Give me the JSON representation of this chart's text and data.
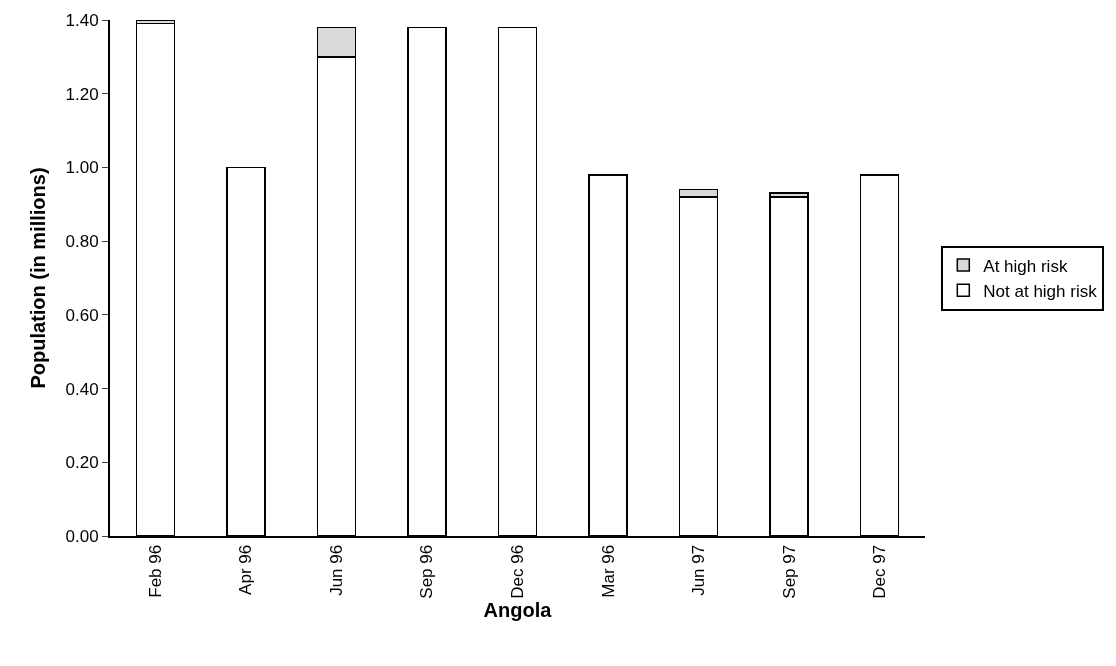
{
  "chart_data": {
    "type": "bar",
    "stacked": true,
    "xlabel": "Angola",
    "ylabel": "Population (in millions)",
    "categories": [
      "Feb 96",
      "Apr 96",
      "Jun 96",
      "Sep 96",
      "Dec 96",
      "Mar 96",
      "Jun 97",
      "Sep 97",
      "Dec 97"
    ],
    "series": [
      {
        "name": "Not at high risk",
        "color": "#ffffff",
        "values": [
          1.39,
          1.0,
          1.3,
          1.38,
          1.38,
          0.98,
          0.92,
          0.92,
          0.98
        ]
      },
      {
        "name": "At high risk",
        "color": "#d9d9d9",
        "values": [
          0.01,
          null,
          0.08,
          null,
          null,
          null,
          0.02,
          0.01,
          null
        ]
      }
    ],
    "ylim": [
      0,
      1.4
    ],
    "yticks": [
      {
        "value": 0,
        "label": "0.00"
      },
      {
        "value": 0.2,
        "label": "0.20"
      },
      {
        "value": 0.4,
        "label": "0.40"
      },
      {
        "value": 0.6,
        "label": "0.60"
      },
      {
        "value": 0.8,
        "label": "0.80"
      },
      {
        "value": 1.0,
        "label": "1.00"
      },
      {
        "value": 1.2,
        "label": "1.20"
      },
      {
        "value": 1.4,
        "label": "1.40"
      }
    ],
    "legend": "right"
  }
}
